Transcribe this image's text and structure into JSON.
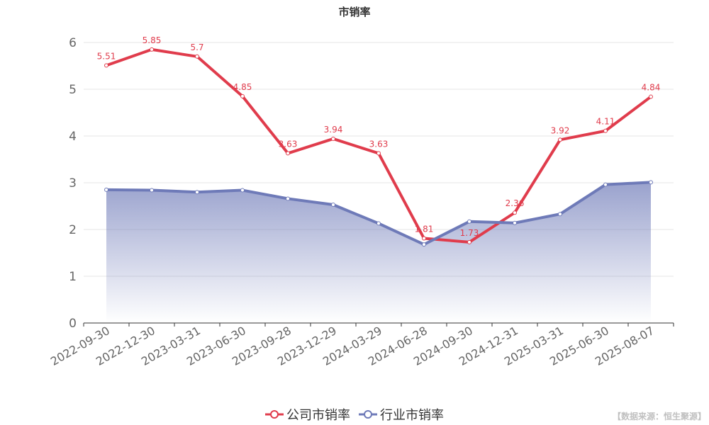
{
  "chart_data": {
    "type": "line",
    "title": "市销率",
    "categories": [
      "2022-09-30",
      "2022-12-30",
      "2023-03-31",
      "2023-06-30",
      "2023-09-28",
      "2023-12-29",
      "2024-03-29",
      "2024-06-28",
      "2024-09-30",
      "2024-12-31",
      "2025-03-31",
      "2025-06-30",
      "2025-08-07"
    ],
    "series": [
      {
        "name": "公司市销率",
        "color": "#e03c4c",
        "labels": true,
        "values": [
          5.51,
          5.85,
          5.7,
          4.85,
          3.63,
          3.94,
          3.63,
          1.81,
          1.73,
          2.36,
          3.92,
          4.11,
          4.84
        ]
      },
      {
        "name": "行业市销率",
        "color": "#6e7ab8",
        "area": true,
        "labels": false,
        "values": [
          2.85,
          2.84,
          2.8,
          2.84,
          2.66,
          2.53,
          2.13,
          1.68,
          2.17,
          2.14,
          2.33,
          2.96,
          3.01
        ]
      }
    ],
    "ylim": [
      0,
      6
    ],
    "yticks": [
      0,
      1,
      2,
      3,
      4,
      5,
      6
    ],
    "grid": true,
    "legend_position": "bottom"
  },
  "source_note": "【数据来源：恒生聚源】"
}
